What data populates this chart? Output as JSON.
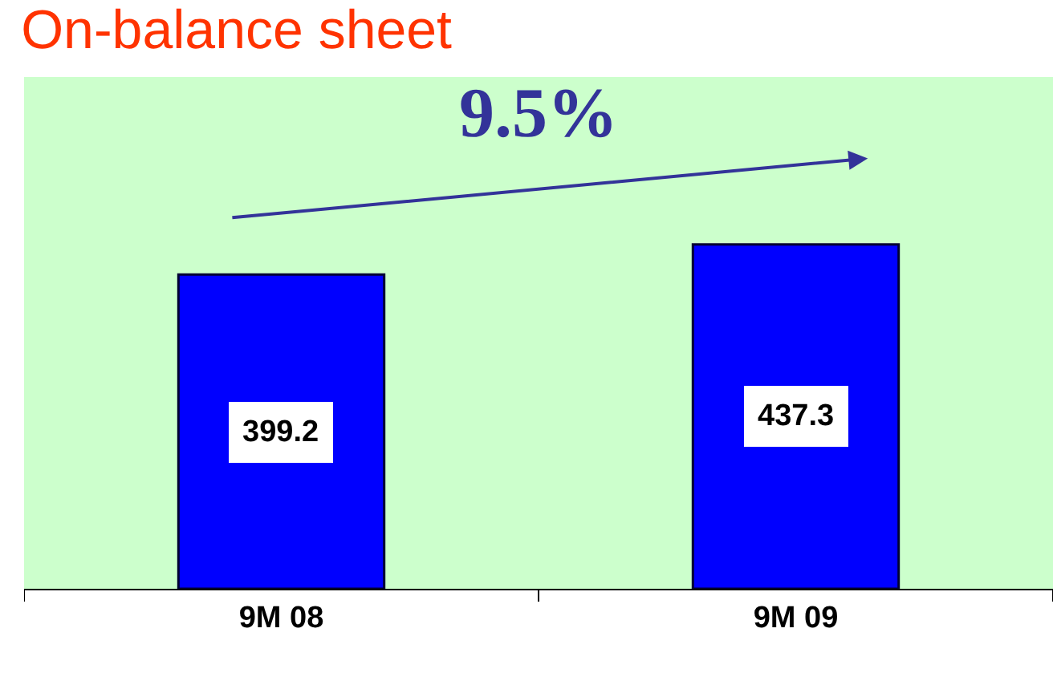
{
  "chart_data": {
    "type": "bar",
    "title": "On-balance sheet",
    "categories": [
      "9M 08",
      "9M 09"
    ],
    "values": [
      399.2,
      437.3
    ],
    "color": "#0000ff",
    "data_labels": true,
    "ylim": [
      0,
      650
    ],
    "annotations": [
      "9.5%"
    ],
    "grid": false,
    "legend": false
  }
}
